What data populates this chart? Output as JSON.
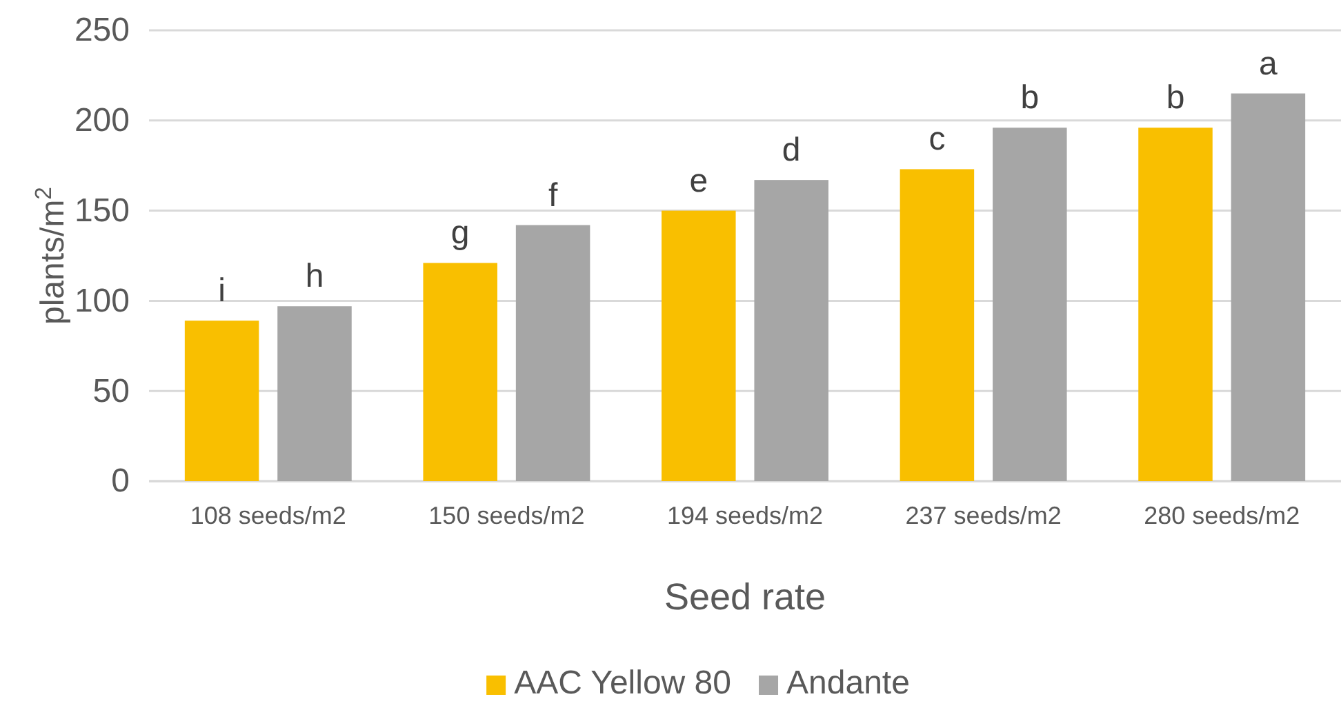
{
  "chart_data": {
    "type": "bar",
    "xlabel": "Seed rate",
    "ylabel": "plants/m$^{2}$",
    "categories": [
      "108 seeds/m2",
      "150 seeds/m2",
      "194 seeds/m2",
      "237 seeds/m2",
      "280 seeds/m2"
    ],
    "series": [
      {
        "name": "AAC Yellow 80",
        "color": "#f9bf00",
        "values": [
          89,
          121,
          150,
          173,
          196
        ],
        "value_labels": [
          "i",
          "g",
          "e",
          "c",
          "b"
        ]
      },
      {
        "name": "Andante",
        "color": "#a6a6a6",
        "values": [
          97,
          142,
          167,
          196,
          215
        ],
        "value_labels": [
          "h",
          "f",
          "d",
          "b",
          "a"
        ]
      }
    ],
    "ylim": [
      0,
      250
    ],
    "yticks": [
      0,
      50,
      100,
      150,
      200,
      250
    ],
    "grid": "y",
    "legend": "bottom"
  }
}
